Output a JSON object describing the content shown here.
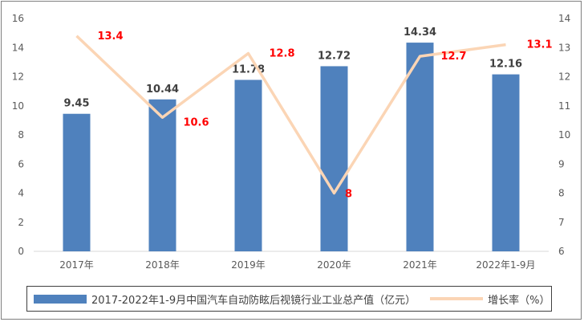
{
  "chart_data": {
    "type": "bar+line",
    "categories": [
      "2017年",
      "2018年",
      "2019年",
      "2020年",
      "2021年",
      "2022年1-9月"
    ],
    "series": [
      {
        "name": "2017-2022年1-9月中国汽车自动防眩后视镜行业工业总产值（亿元）",
        "type": "bar",
        "axis": "left",
        "values": [
          9.45,
          10.44,
          11.78,
          12.72,
          14.34,
          12.16
        ],
        "labels": [
          "9.45",
          "10.44",
          "11.78",
          "12.72",
          "14.34",
          "12.16"
        ],
        "color": "#4f81bd"
      },
      {
        "name": "增长率（%）",
        "type": "line",
        "axis": "right",
        "values": [
          13.4,
          10.6,
          12.8,
          8,
          12.7,
          13.1
        ],
        "labels": [
          "13.4",
          "10.6",
          "12.8",
          "8",
          "12.7",
          "13.1"
        ],
        "color": "#fbd5b5",
        "label_color": "#ff0000"
      }
    ],
    "ylim": [
      0,
      16
    ],
    "yticks": [
      "0",
      "2",
      "4",
      "6",
      "8",
      "10",
      "12",
      "14",
      "16"
    ],
    "y2lim": [
      6,
      14
    ],
    "y2ticks": [
      "6",
      "7",
      "8",
      "9",
      "10",
      "11",
      "12",
      "13",
      "14"
    ],
    "legend": "bottom",
    "grid": false,
    "title": "",
    "xlabel": "",
    "ylabel": ""
  }
}
